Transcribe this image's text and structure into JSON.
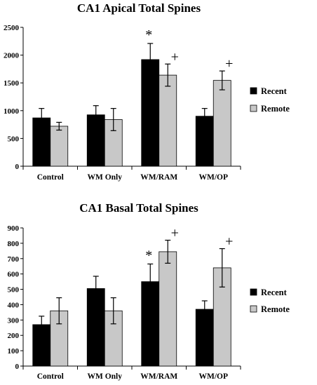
{
  "chart_data": [
    {
      "type": "bar",
      "title": "CA1 Apical Total Spines",
      "categories": [
        "Control",
        "WM Only",
        "WM/RAM",
        "WM/OP"
      ],
      "series": [
        {
          "name": "Recent",
          "color": "#000000",
          "values": [
            870,
            925,
            1920,
            900
          ],
          "errors": [
            170,
            165,
            290,
            140
          ]
        },
        {
          "name": "Remote",
          "color": "#c8c8c8",
          "values": [
            720,
            840,
            1640,
            1545
          ],
          "errors": [
            70,
            200,
            200,
            170
          ]
        }
      ],
      "ylim": [
        0,
        2500
      ],
      "yticks": [
        "0",
        "500",
        "1000",
        "1500",
        "2000",
        "2500"
      ],
      "yticks_values": [
        0,
        500,
        1000,
        1500,
        2000,
        2500
      ],
      "annotations": [
        {
          "category": "WM/RAM",
          "series": "Recent",
          "text": "*"
        },
        {
          "category": "WM/RAM",
          "series": "Remote",
          "text": "+"
        },
        {
          "category": "WM/OP",
          "series": "Remote",
          "text": "+"
        }
      ],
      "legend_placement": "right",
      "grid": false
    },
    {
      "type": "bar",
      "title": "CA1 Basal Total Spines",
      "categories": [
        "Control",
        "WM Only",
        "WM/RAM",
        "WM/OP"
      ],
      "series": [
        {
          "name": "Recent",
          "color": "#000000",
          "values": [
            270,
            505,
            550,
            370
          ],
          "errors": [
            55,
            80,
            115,
            55
          ]
        },
        {
          "name": "Remote",
          "color": "#c8c8c8",
          "values": [
            360,
            360,
            745,
            640
          ],
          "errors": [
            85,
            85,
            75,
            125
          ]
        }
      ],
      "ylim": [
        0,
        900
      ],
      "yticks": [
        "0",
        "100",
        "200",
        "300",
        "400",
        "500",
        "600",
        "700",
        "800",
        "900"
      ],
      "yticks_values": [
        0,
        100,
        200,
        300,
        400,
        500,
        600,
        700,
        800,
        900
      ],
      "annotations": [
        {
          "category": "WM/RAM",
          "series": "Recent",
          "text": "*"
        },
        {
          "category": "WM/RAM",
          "series": "Remote",
          "text": "+"
        },
        {
          "category": "WM/OP",
          "series": "Remote",
          "text": "+"
        }
      ],
      "legend_placement": "right",
      "grid": false
    }
  ]
}
